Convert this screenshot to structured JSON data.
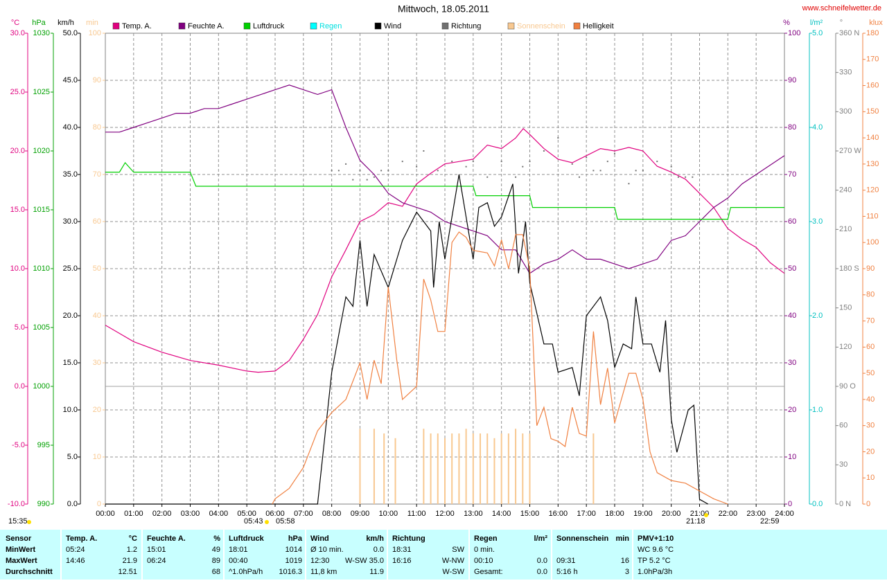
{
  "chart_data": {
    "type": "line",
    "title": "Mittwoch, 18.05.2011",
    "source": "www.schneifelwetter.de",
    "xlim": [
      0,
      24
    ],
    "xticks": [
      {
        "value": 0,
        "label": "00:00"
      },
      {
        "value": 1,
        "label": "01:00"
      },
      {
        "value": 2,
        "label": "02:00"
      },
      {
        "value": 3,
        "label": "03:00"
      },
      {
        "value": 4,
        "label": "04:00"
      },
      {
        "value": 5,
        "label": "05:00"
      },
      {
        "value": 6,
        "label": "06:00"
      },
      {
        "value": 7,
        "label": "07:00"
      },
      {
        "value": 8,
        "label": "08:00"
      },
      {
        "value": 9,
        "label": "09:00"
      },
      {
        "value": 10,
        "label": "10:00"
      },
      {
        "value": 11,
        "label": "11:00"
      },
      {
        "value": 12,
        "label": "12:00"
      },
      {
        "value": 13,
        "label": "13:00"
      },
      {
        "value": 14,
        "label": "14:00"
      },
      {
        "value": 15,
        "label": "15:00"
      },
      {
        "value": 16,
        "label": "16:00"
      },
      {
        "value": 17,
        "label": "17:00"
      },
      {
        "value": 18,
        "label": "18:00"
      },
      {
        "value": 19,
        "label": "19:00"
      },
      {
        "value": 20,
        "label": "20:00"
      },
      {
        "value": 21,
        "label": "21:00"
      },
      {
        "value": 22,
        "label": "22:00"
      },
      {
        "value": 23,
        "label": "23:00"
      },
      {
        "value": 24,
        "label": "24:00"
      }
    ],
    "grid": true,
    "axes": [
      {
        "unit": "°C",
        "color": "#e0007f",
        "lim": [
          -10,
          30
        ],
        "ticks": [
          {
            "value": -10,
            "label": "-10.0"
          },
          {
            "value": -5,
            "label": "-5.0"
          },
          {
            "value": 0,
            "label": "0.0"
          },
          {
            "value": 5,
            "label": "5.0"
          },
          {
            "value": 10,
            "label": "10.0"
          },
          {
            "value": 15,
            "label": "15.0"
          },
          {
            "value": 20,
            "label": "20.0"
          },
          {
            "value": 25,
            "label": "25.0"
          },
          {
            "value": 30,
            "label": "30.0"
          }
        ]
      },
      {
        "unit": "hPa",
        "color": "#00a000",
        "lim": [
          990,
          1030
        ],
        "ticks": [
          990,
          995,
          1000,
          1005,
          1010,
          1015,
          1020,
          1025,
          1030
        ]
      },
      {
        "unit": "km/h",
        "color": "#000000",
        "lim": [
          0,
          50
        ],
        "ticks": [
          {
            "value": 0,
            "label": "0.0"
          },
          {
            "value": 5,
            "label": "5.0"
          },
          {
            "value": 10,
            "label": "10.0"
          },
          {
            "value": 15,
            "label": "15.0"
          },
          {
            "value": 20,
            "label": "20.0"
          },
          {
            "value": 25,
            "label": "25.0"
          },
          {
            "value": 30,
            "label": "30.0"
          },
          {
            "value": 35,
            "label": "35.0"
          },
          {
            "value": 40,
            "label": "40.0"
          },
          {
            "value": 45,
            "label": "45.0"
          },
          {
            "value": 50,
            "label": "50.0"
          }
        ]
      },
      {
        "unit": "min",
        "color": "#f8c890",
        "lim": [
          0,
          100
        ],
        "ticks": [
          0,
          10,
          20,
          30,
          40,
          50,
          60,
          70,
          80,
          90,
          100
        ]
      },
      {
        "unit": "%",
        "color": "#800080",
        "lim": [
          0,
          100
        ],
        "ticks": [
          0,
          10,
          20,
          30,
          40,
          50,
          60,
          70,
          80,
          90,
          100
        ]
      },
      {
        "unit": "l/m²",
        "color": "#00c0c0",
        "lim": [
          0,
          5
        ],
        "ticks": [
          {
            "value": 0,
            "label": "0.0"
          },
          {
            "value": 1,
            "label": "1.0"
          },
          {
            "value": 2,
            "label": "2.0"
          },
          {
            "value": 3,
            "label": "3.0"
          },
          {
            "value": 4,
            "label": "4.0"
          },
          {
            "value": 5,
            "label": "5.0"
          }
        ]
      },
      {
        "unit": "°",
        "color": "#808080",
        "lim": [
          0,
          360
        ],
        "ticks": [
          {
            "value": 0,
            "label": "0 N"
          },
          30,
          60,
          {
            "value": 90,
            "label": "90 O"
          },
          120,
          150,
          {
            "value": 180,
            "label": "180 S"
          },
          210,
          240,
          {
            "value": 270,
            "label": "270 W"
          },
          300,
          330,
          {
            "value": 360,
            "label": "360 N"
          }
        ]
      },
      {
        "unit": "klux",
        "color": "#f08040",
        "lim": [
          0,
          180
        ],
        "ticks": [
          0,
          10,
          20,
          30,
          40,
          50,
          60,
          70,
          80,
          90,
          100,
          110,
          120,
          130,
          140,
          150,
          160,
          170,
          180
        ]
      }
    ],
    "series": [
      {
        "name": "Temp. A.",
        "color": "#e0007f",
        "axis": 0,
        "style": "line",
        "x": [
          0,
          0.5,
          1,
          2,
          3,
          4,
          5,
          5.4,
          6,
          6.5,
          7,
          7.5,
          8,
          8.5,
          9,
          9.5,
          10,
          10.5,
          11,
          11.5,
          12,
          12.5,
          13,
          13.5,
          14,
          14.5,
          14.77,
          15,
          15.5,
          16,
          16.5,
          17,
          17.5,
          18,
          18.5,
          19,
          19.5,
          20,
          20.5,
          21,
          21.5,
          22,
          22.5,
          23,
          23.5,
          24
        ],
        "values": [
          5.2,
          4.5,
          3.8,
          2.9,
          2.2,
          1.8,
          1.3,
          1.2,
          1.3,
          2.2,
          4.0,
          6.1,
          9.3,
          11.6,
          14.0,
          14.6,
          15.6,
          15.3,
          17.2,
          18.1,
          18.9,
          19.1,
          19.3,
          20.5,
          20.2,
          21.1,
          21.9,
          21.4,
          20.2,
          19.3,
          19.0,
          19.6,
          20.2,
          20.0,
          20.3,
          20.0,
          18.7,
          18.2,
          17.6,
          16.4,
          15.2,
          13.4,
          12.5,
          11.8,
          10.5,
          9.6
        ]
      },
      {
        "name": "Feuchte A.",
        "color": "#800080",
        "axis": 4,
        "style": "line",
        "x": [
          0,
          0.5,
          1,
          1.5,
          2,
          2.5,
          3,
          3.5,
          4,
          4.5,
          5,
          5.5,
          6,
          6.5,
          7,
          7.5,
          8,
          8.5,
          9,
          9.5,
          10,
          10.5,
          11,
          11.5,
          12,
          12.5,
          13,
          13.5,
          14,
          14.5,
          15,
          15.5,
          16,
          16.5,
          17,
          17.5,
          18,
          18.5,
          19,
          19.5,
          20,
          20.5,
          21,
          21.5,
          22,
          22.5,
          23,
          23.5,
          24
        ],
        "values": [
          79,
          79,
          80,
          81,
          82,
          83,
          83,
          84,
          84,
          85,
          86,
          87,
          88,
          89,
          88,
          87,
          88,
          80,
          73,
          70,
          66,
          64,
          63,
          62,
          60,
          59,
          58,
          57,
          54,
          54,
          49,
          51,
          52,
          54,
          52,
          52,
          51,
          50,
          51,
          52,
          56,
          57,
          60,
          63,
          65,
          68,
          70,
          72,
          74
        ]
      },
      {
        "name": "Luftdruck",
        "color": "#00d000",
        "axis": 1,
        "style": "line",
        "x": [
          0,
          0.5,
          0.7,
          1,
          3,
          3.2,
          13,
          13.1,
          15,
          15.1,
          18,
          18.1,
          22,
          22.1,
          24
        ],
        "values": [
          1018.2,
          1018.2,
          1019,
          1018.2,
          1018.2,
          1017,
          1017,
          1016.2,
          1016.2,
          1015.2,
          1015.2,
          1014.2,
          1014.2,
          1015.2,
          1015.2
        ]
      },
      {
        "name": "Regen",
        "color": "#00ffff",
        "label_color": "#00e0e0",
        "axis": 5,
        "style": "bars",
        "x": [],
        "values": []
      },
      {
        "name": "Wind",
        "color": "#000000",
        "axis": 2,
        "style": "line",
        "x": [
          0,
          7.5,
          8,
          8.5,
          8.75,
          9,
          9.25,
          9.5,
          10,
          10.5,
          11,
          11.5,
          11.6,
          11.8,
          12,
          12.5,
          13,
          13.2,
          13.5,
          13.75,
          14,
          14.4,
          14.6,
          14.85,
          15,
          15.5,
          15.8,
          16,
          16.5,
          16.75,
          17,
          17.5,
          17.75,
          18,
          18.3,
          18.6,
          18.75,
          19,
          19.3,
          19.6,
          19.8,
          20,
          20.2,
          20.6,
          20.8,
          21,
          21.3
        ],
        "values": [
          0,
          0,
          14,
          22,
          21,
          28,
          21,
          26.5,
          23,
          28,
          31,
          29,
          23,
          30,
          26,
          35,
          26,
          31.5,
          32,
          29.5,
          30.5,
          34,
          24.5,
          30,
          23.5,
          17,
          17,
          14,
          14.5,
          11.5,
          20,
          22,
          19.5,
          14.5,
          17,
          16.5,
          22,
          17,
          17,
          14,
          19.5,
          9,
          5.5,
          10,
          10.5,
          0.5,
          0
        ]
      },
      {
        "name": "Richtung",
        "color": "#707070",
        "axis": 6,
        "style": "dots",
        "x": [
          8,
          8.25,
          8.5,
          8.75,
          9,
          9.25,
          9.5,
          9.75,
          10,
          10.5,
          11,
          11.25,
          11.75,
          12.25,
          12.75,
          13,
          13.5,
          14,
          14.5,
          14.75,
          15,
          15.5,
          16,
          16.5,
          16.75,
          17,
          17.25,
          17.5,
          17.75,
          18,
          18.5,
          18.75,
          19,
          19.5,
          20,
          20.25,
          20.5,
          20.75
        ],
        "values": [
          255,
          255,
          260,
          248,
          255,
          248,
          250,
          255,
          255,
          262,
          258,
          270,
          255,
          262,
          258,
          262,
          250,
          262,
          250,
          258,
          262,
          270,
          280,
          260,
          250,
          265,
          255,
          255,
          262,
          268,
          245,
          255,
          255,
          262,
          258,
          250,
          250,
          250
        ]
      },
      {
        "name": "Sonnenschein",
        "color": "#f8c890",
        "label_color": "#f8c890",
        "axis": 3,
        "style": "bars",
        "x": [
          9,
          9.5,
          9.85,
          10.25,
          11.25,
          11.5,
          11.75,
          12,
          12.25,
          12.5,
          12.75,
          13,
          13.25,
          13.5,
          13.75,
          14,
          14.25,
          14.5,
          14.75,
          15,
          17.25
        ],
        "values": [
          16,
          16,
          15,
          14,
          16,
          15,
          15,
          14,
          15,
          15,
          16,
          15,
          15,
          15,
          14,
          15,
          15,
          16,
          15,
          15,
          15
        ]
      },
      {
        "name": "Helligkeit",
        "color": "#f08040",
        "axis": 7,
        "style": "line",
        "x": [
          5.9,
          6,
          6.5,
          7,
          7.5,
          8,
          8.5,
          9,
          9.25,
          9.5,
          9.75,
          10,
          10.3,
          10.5,
          11,
          11.25,
          11.5,
          11.75,
          12,
          12.25,
          12.5,
          12.75,
          13,
          13.5,
          13.75,
          14,
          14.25,
          14.5,
          14.75,
          15,
          15.25,
          15.5,
          15.75,
          16,
          16.25,
          16.5,
          16.75,
          17,
          17.25,
          17.5,
          17.75,
          18,
          18.5,
          18.75,
          19,
          19.25,
          19.5,
          20,
          20.5,
          21,
          21.5,
          22
        ],
        "values": [
          0,
          2,
          6,
          14,
          28,
          35,
          40,
          54,
          40,
          55,
          46,
          83,
          55,
          40,
          45,
          86,
          78,
          66,
          66,
          100,
          104,
          102,
          97,
          96,
          91,
          101,
          90,
          103,
          103,
          90,
          30,
          37,
          25,
          24,
          22,
          37,
          27,
          26,
          66,
          38,
          52,
          31,
          50,
          50,
          40,
          20,
          12,
          9,
          8,
          5,
          2,
          0
        ]
      }
    ],
    "annotations": [
      "15:35",
      "05:43",
      "05:58",
      "21:18",
      "22:59"
    ]
  },
  "summary": {
    "sections": [
      {
        "title": "Sensor",
        "rows": [
          {
            "left": "MinWert"
          },
          {
            "left": "MaxWert"
          },
          {
            "left": "Durchschnitt"
          }
        ]
      },
      {
        "title": "Temp. A.",
        "unit": "°C",
        "rows": [
          {
            "left": "05:24",
            "right": "1.2"
          },
          {
            "left": "14:46",
            "right": "21.9"
          },
          {
            "right": "12.51"
          }
        ]
      },
      {
        "title": "Feuchte A.",
        "unit": "%",
        "rows": [
          {
            "left": "15:01",
            "right": "49"
          },
          {
            "left": "06:24",
            "right": "89"
          },
          {
            "right": "68"
          }
        ]
      },
      {
        "title": "Luftdruck",
        "unit": "hPa",
        "rows": [
          {
            "left": "18:01",
            "right": "1014"
          },
          {
            "left": "00:40",
            "right": "1019"
          },
          {
            "left": "^1.0hPa/h",
            "right": "1016.3"
          }
        ]
      },
      {
        "title": "Wind",
        "unit": "km/h",
        "rows": [
          {
            "left": "Ø 10 min.",
            "right": "0.0"
          },
          {
            "left": "12:30",
            "right": "W-SW 35.0"
          },
          {
            "left": "11,8 km",
            "right": "11.9"
          }
        ]
      },
      {
        "title": "Richtung",
        "rows": [
          {
            "left": "18:31",
            "right": "SW"
          },
          {
            "left": "16:16",
            "right": "W-NW"
          },
          {
            "right": "W-SW"
          }
        ]
      },
      {
        "title": "Regen",
        "unit": "l/m²",
        "rows": [
          {
            "left": "0 min."
          },
          {
            "left": "00:10",
            "right": "0.0"
          },
          {
            "left": "Gesamt:",
            "right": "0.0"
          }
        ]
      },
      {
        "title": "Sonnenschein",
        "unit": "min",
        "rows": [
          null,
          {
            "left": "09:31",
            "right": "16"
          },
          {
            "left": "5:16 h",
            "right": "3"
          }
        ]
      },
      {
        "title": "PMV+1:10",
        "rows": [
          {
            "left": "WC 9.6 °C"
          },
          {
            "left": "TP 5.2 °C"
          },
          {
            "left": "1.0hPa/3h"
          }
        ]
      }
    ]
  }
}
